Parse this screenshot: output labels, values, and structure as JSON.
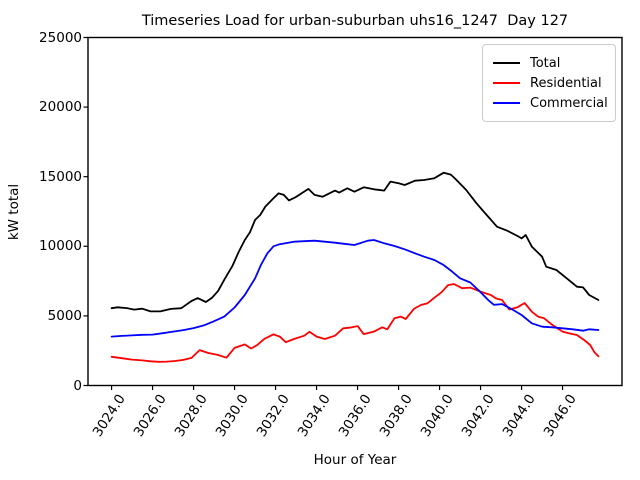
{
  "chart_data": {
    "type": "line",
    "title": "Timeseries Load for urban-suburban uhs16_1247  Day 127",
    "xlabel": "Hour of Year",
    "ylabel": "kW total",
    "xlim": [
      3022.85,
      3048.9
    ],
    "ylim": [
      0,
      25000
    ],
    "grid": false,
    "legend_position": "top-right",
    "yticks": [
      0,
      5000,
      10000,
      15000,
      20000,
      25000
    ],
    "ytick_labels": [
      "0",
      "5000",
      "10000",
      "15000",
      "20000",
      "25000"
    ],
    "xticks": [
      3024,
      3026,
      3028,
      3030,
      3032,
      3034,
      3036,
      3038,
      3040,
      3042,
      3044,
      3046
    ],
    "xtick_labels": [
      "3024.0",
      "3026.0",
      "3028.0",
      "3030.0",
      "3032.0",
      "3034.0",
      "3036.0",
      "3038.0",
      "3040.0",
      "3042.0",
      "3044.0",
      "3046.0"
    ],
    "series": [
      {
        "name": "Total",
        "color": "#000000",
        "points": [
          [
            3024.0,
            5550
          ],
          [
            3024.3,
            5620
          ],
          [
            3024.75,
            5560
          ],
          [
            3025.1,
            5450
          ],
          [
            3025.5,
            5520
          ],
          [
            3025.9,
            5320
          ],
          [
            3026.4,
            5330
          ],
          [
            3026.9,
            5500
          ],
          [
            3027.4,
            5550
          ],
          [
            3027.9,
            6070
          ],
          [
            3028.2,
            6280
          ],
          [
            3028.6,
            6000
          ],
          [
            3028.9,
            6300
          ],
          [
            3029.2,
            6800
          ],
          [
            3029.5,
            7600
          ],
          [
            3029.9,
            8600
          ],
          [
            3030.2,
            9600
          ],
          [
            3030.5,
            10450
          ],
          [
            3030.75,
            11000
          ],
          [
            3031.0,
            11900
          ],
          [
            3031.25,
            12250
          ],
          [
            3031.5,
            12850
          ],
          [
            3031.9,
            13450
          ],
          [
            3032.15,
            13810
          ],
          [
            3032.4,
            13690
          ],
          [
            3032.65,
            13300
          ],
          [
            3033.0,
            13550
          ],
          [
            3033.6,
            14120
          ],
          [
            3033.9,
            13690
          ],
          [
            3034.3,
            13565
          ],
          [
            3034.9,
            14000
          ],
          [
            3035.1,
            13855
          ],
          [
            3035.5,
            14165
          ],
          [
            3035.85,
            13925
          ],
          [
            3036.3,
            14240
          ],
          [
            3036.8,
            14095
          ],
          [
            3037.3,
            14000
          ],
          [
            3037.6,
            14645
          ],
          [
            3038.0,
            14525
          ],
          [
            3038.3,
            14405
          ],
          [
            3038.8,
            14715
          ],
          [
            3039.25,
            14765
          ],
          [
            3039.75,
            14890
          ],
          [
            3040.2,
            15290
          ],
          [
            3040.55,
            15150
          ],
          [
            3040.8,
            14800
          ],
          [
            3041.3,
            14045
          ],
          [
            3041.8,
            13090
          ],
          [
            3042.3,
            12250
          ],
          [
            3042.8,
            11410
          ],
          [
            3043.3,
            11120
          ],
          [
            3043.8,
            10740
          ],
          [
            3044.0,
            10570
          ],
          [
            3044.2,
            10815
          ],
          [
            3044.5,
            9975
          ],
          [
            3045.0,
            9255
          ],
          [
            3045.2,
            8535
          ],
          [
            3045.7,
            8295
          ],
          [
            3046.2,
            7700
          ],
          [
            3046.7,
            7100
          ],
          [
            3047.0,
            7050
          ],
          [
            3047.3,
            6500
          ],
          [
            3047.75,
            6140
          ]
        ]
      },
      {
        "name": "Residential",
        "color": "#ff0000",
        "points": [
          [
            3024.0,
            2060
          ],
          [
            3024.5,
            1960
          ],
          [
            3025.0,
            1860
          ],
          [
            3025.5,
            1800
          ],
          [
            3025.9,
            1740
          ],
          [
            3026.3,
            1700
          ],
          [
            3026.7,
            1720
          ],
          [
            3027.1,
            1760
          ],
          [
            3027.5,
            1840
          ],
          [
            3027.9,
            1980
          ],
          [
            3028.3,
            2540
          ],
          [
            3028.7,
            2340
          ],
          [
            3029.2,
            2190
          ],
          [
            3029.6,
            2000
          ],
          [
            3030.0,
            2700
          ],
          [
            3030.5,
            2950
          ],
          [
            3030.8,
            2660
          ],
          [
            3031.1,
            2900
          ],
          [
            3031.45,
            3350
          ],
          [
            3031.9,
            3680
          ],
          [
            3032.2,
            3510
          ],
          [
            3032.5,
            3110
          ],
          [
            3032.9,
            3340
          ],
          [
            3033.4,
            3580
          ],
          [
            3033.65,
            3860
          ],
          [
            3034.0,
            3510
          ],
          [
            3034.4,
            3340
          ],
          [
            3034.9,
            3580
          ],
          [
            3035.3,
            4110
          ],
          [
            3035.6,
            4150
          ],
          [
            3036.0,
            4270
          ],
          [
            3036.3,
            3690
          ],
          [
            3036.8,
            3870
          ],
          [
            3037.2,
            4180
          ],
          [
            3037.45,
            4040
          ],
          [
            3037.8,
            4830
          ],
          [
            3038.1,
            4950
          ],
          [
            3038.35,
            4780
          ],
          [
            3038.75,
            5500
          ],
          [
            3039.1,
            5790
          ],
          [
            3039.4,
            5900
          ],
          [
            3039.75,
            6310
          ],
          [
            3040.1,
            6700
          ],
          [
            3040.4,
            7200
          ],
          [
            3040.7,
            7290
          ],
          [
            3041.1,
            6990
          ],
          [
            3041.5,
            7030
          ],
          [
            3042.0,
            6740
          ],
          [
            3042.5,
            6500
          ],
          [
            3042.75,
            6260
          ],
          [
            3043.05,
            6140
          ],
          [
            3043.4,
            5460
          ],
          [
            3043.8,
            5620
          ],
          [
            3044.15,
            5930
          ],
          [
            3044.5,
            5300
          ],
          [
            3044.8,
            4950
          ],
          [
            3045.1,
            4830
          ],
          [
            3045.5,
            4350
          ],
          [
            3046.0,
            3870
          ],
          [
            3046.3,
            3750
          ],
          [
            3046.7,
            3630
          ],
          [
            3047.05,
            3270
          ],
          [
            3047.35,
            2910
          ],
          [
            3047.55,
            2400
          ],
          [
            3047.75,
            2100
          ]
        ]
      },
      {
        "name": "Commercial",
        "color": "#0000ff",
        "points": [
          [
            3024.0,
            3510
          ],
          [
            3024.5,
            3560
          ],
          [
            3025.0,
            3600
          ],
          [
            3025.5,
            3640
          ],
          [
            3026.0,
            3660
          ],
          [
            3026.5,
            3760
          ],
          [
            3027.0,
            3870
          ],
          [
            3027.5,
            3980
          ],
          [
            3028.0,
            4120
          ],
          [
            3028.5,
            4320
          ],
          [
            3029.0,
            4620
          ],
          [
            3029.5,
            4950
          ],
          [
            3030.0,
            5600
          ],
          [
            3030.5,
            6500
          ],
          [
            3031.0,
            7700
          ],
          [
            3031.3,
            8700
          ],
          [
            3031.6,
            9500
          ],
          [
            3031.9,
            10000
          ],
          [
            3032.2,
            10150
          ],
          [
            3032.9,
            10330
          ],
          [
            3033.9,
            10400
          ],
          [
            3034.9,
            10260
          ],
          [
            3035.5,
            10150
          ],
          [
            3035.85,
            10090
          ],
          [
            3036.5,
            10400
          ],
          [
            3036.8,
            10450
          ],
          [
            3037.3,
            10215
          ],
          [
            3037.8,
            10020
          ],
          [
            3038.3,
            9785
          ],
          [
            3038.8,
            9500
          ],
          [
            3039.25,
            9250
          ],
          [
            3039.75,
            9015
          ],
          [
            3040.2,
            8650
          ],
          [
            3040.6,
            8200
          ],
          [
            3041.0,
            7700
          ],
          [
            3041.5,
            7400
          ],
          [
            3042.0,
            6700
          ],
          [
            3042.4,
            6100
          ],
          [
            3042.65,
            5800
          ],
          [
            3043.05,
            5850
          ],
          [
            3043.5,
            5500
          ],
          [
            3044.0,
            5065
          ],
          [
            3044.5,
            4470
          ],
          [
            3045.0,
            4225
          ],
          [
            3045.5,
            4180
          ],
          [
            3046.0,
            4110
          ],
          [
            3046.5,
            4040
          ],
          [
            3047.0,
            3940
          ],
          [
            3047.3,
            4040
          ],
          [
            3047.75,
            3990
          ]
        ]
      }
    ]
  }
}
